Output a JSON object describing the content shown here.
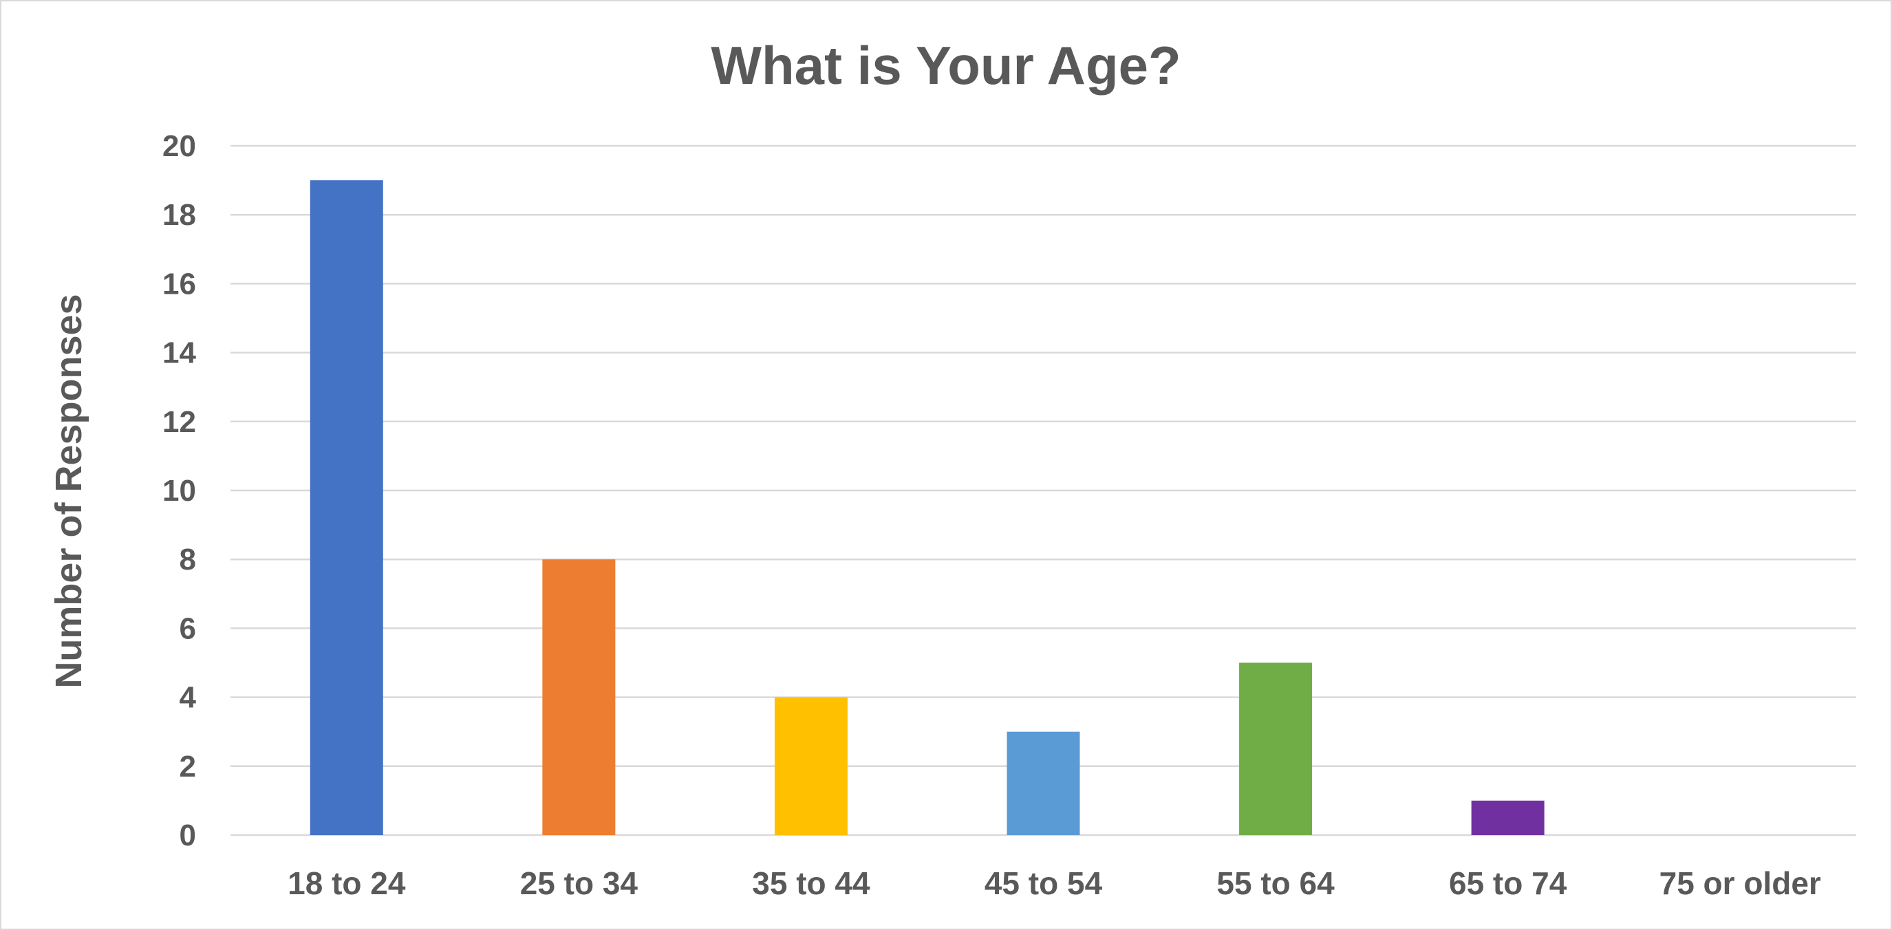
{
  "chart_data": {
    "type": "bar",
    "title": "What is Your Age?",
    "xlabel": "",
    "ylabel": "Number of Responses",
    "categories": [
      "18 to 24",
      "25 to 34",
      "35 to 44",
      "45 to 54",
      "55 to 64",
      "65 to 74",
      "75 or older"
    ],
    "values": [
      19,
      8,
      4,
      3,
      5,
      1,
      0
    ],
    "ylim": [
      0,
      20
    ],
    "yticks": [
      "0",
      "2",
      "4",
      "6",
      "8",
      "10",
      "12",
      "14",
      "16",
      "18",
      "20"
    ],
    "grid": true,
    "legend": "none",
    "colors": [
      "#4472C4",
      "#ED7D31",
      "#FFC000",
      "#5B9BD5",
      "#70AD47",
      "#7030A0",
      "#A5A5A5"
    ]
  }
}
